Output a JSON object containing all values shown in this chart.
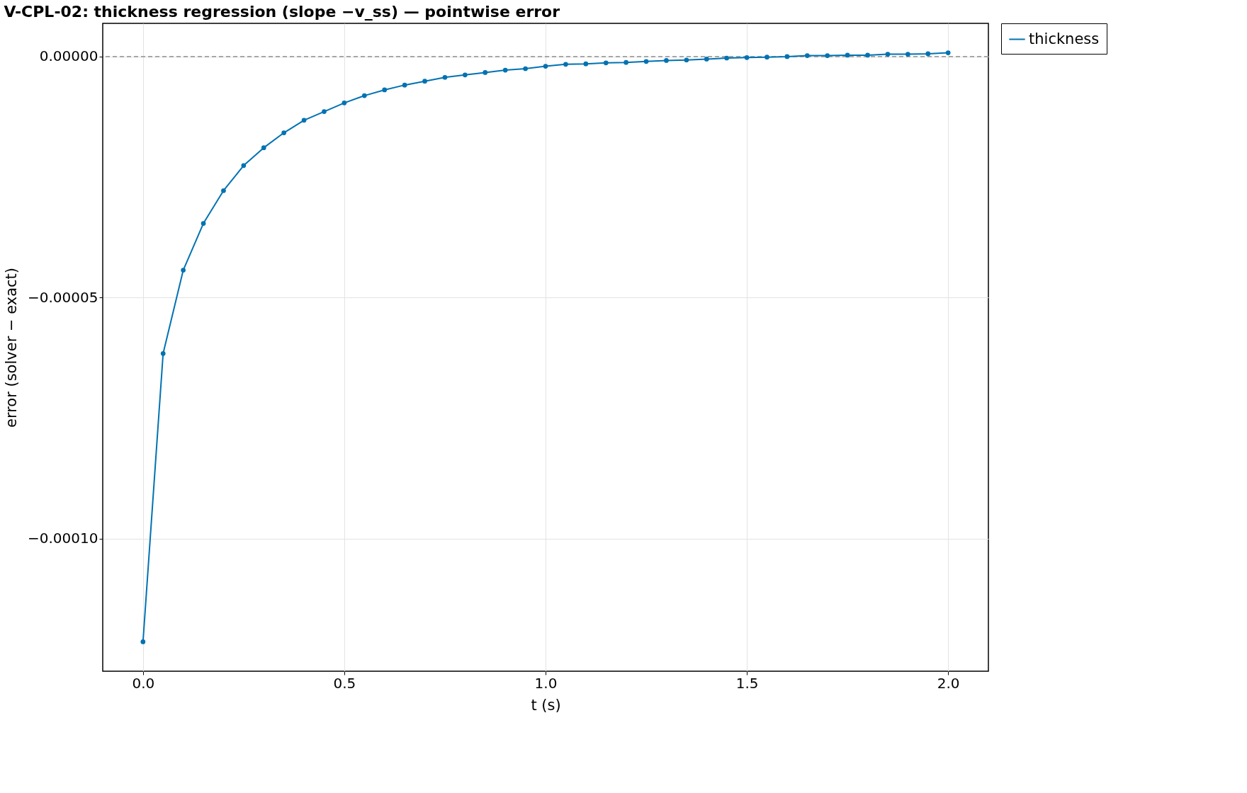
{
  "chart_data": {
    "type": "line",
    "title": "V-CPL-02: thickness regression (slope −v_ss) — pointwise error",
    "xlabel": "t (s)",
    "ylabel": "error (solver − exact)",
    "x": [
      0,
      0.05,
      0.1,
      0.15,
      0.2,
      0.25,
      0.3,
      0.35,
      0.4,
      0.45,
      0.5,
      0.55,
      0.6,
      0.65,
      0.7,
      0.75,
      0.8,
      0.85,
      0.9,
      0.95,
      1.0,
      1.05,
      1.1,
      1.15,
      1.2,
      1.25,
      1.3,
      1.35,
      1.4,
      1.45,
      1.5,
      1.55,
      1.6,
      1.65,
      1.7,
      1.75,
      1.8,
      1.85,
      1.9,
      1.95,
      2.0
    ],
    "series": [
      {
        "name": "thickness",
        "color": "#0072b2",
        "values": [
          -0.0001214,
          -6.16e-05,
          -4.43e-05,
          -3.46e-05,
          -2.78e-05,
          -2.26e-05,
          -1.89e-05,
          -1.58e-05,
          -1.32e-05,
          -1.14e-05,
          -9.6e-06,
          -8.1e-06,
          -6.9e-06,
          -5.9e-06,
          -5.1e-06,
          -4.3e-06,
          -3.8e-06,
          -3.3e-06,
          -2.8e-06,
          -2.5e-06,
          -2e-06,
          -1.6e-06,
          -1.5e-06,
          -1.3e-06,
          -1.2e-06,
          -1e-06,
          -8e-07,
          -7e-07,
          -5e-07,
          -3e-07,
          -2e-07,
          -1e-07,
          0,
          2e-07,
          2e-07,
          3e-07,
          3e-07,
          5e-07,
          5e-07,
          6e-07,
          8e-07
        ]
      }
    ],
    "xlim": [
      -0.1,
      2.1
    ],
    "xticks": [
      {
        "value": 0,
        "label": "0.0"
      },
      {
        "value": 0.5,
        "label": "0.5"
      },
      {
        "value": 1,
        "label": "1.0"
      },
      {
        "value": 1.5,
        "label": "1.5"
      },
      {
        "value": 2,
        "label": "2.0"
      }
    ],
    "ylim": [
      -0.0001275,
      6.9e-06
    ],
    "yticks": [
      {
        "value": -0.0001,
        "label": "−0.00010"
      },
      {
        "value": -5e-05,
        "label": "−0.00005"
      },
      {
        "value": 0,
        "label": "0.00000"
      }
    ],
    "ref_lines": [
      {
        "axis": "y",
        "value": 0,
        "color": "#a6a6a6",
        "line_style": "dashed"
      }
    ],
    "grid": true,
    "legend": "right",
    "marker": "circle",
    "line_style": "solid"
  }
}
